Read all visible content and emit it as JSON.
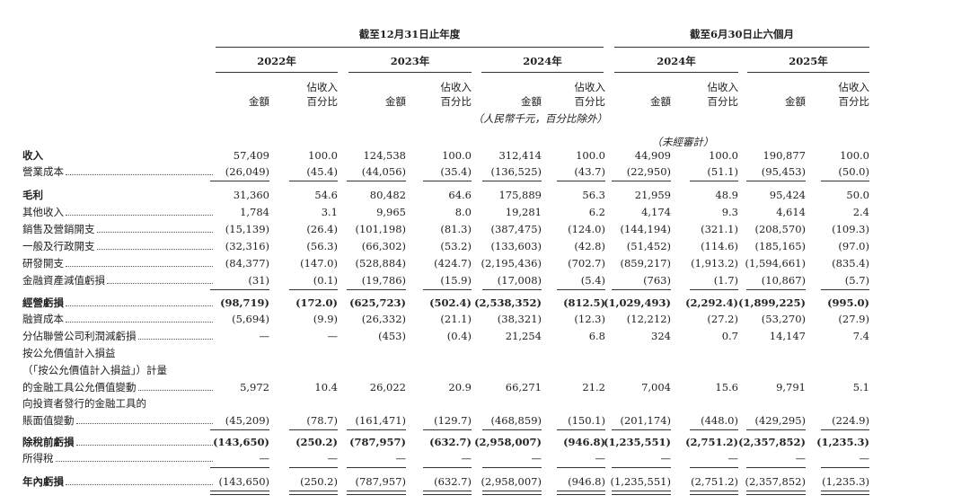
{
  "header": {
    "period_groups": [
      "截至12月31日止年度",
      "截至6月30日止六個月"
    ],
    "years": [
      "2022年",
      "2023年",
      "2024年",
      "2024年",
      "2025年"
    ],
    "amount": "金額",
    "pct_line1": "佔收入",
    "pct_line2": "百分比",
    "unit_note": "（人民幣千元，百分比除外）",
    "unaudited": "（未經審計）"
  },
  "table": {
    "rows": [
      {
        "label": [
          "收入"
        ],
        "values": [
          "57,409",
          "100.0",
          "124,538",
          "100.0",
          "312,414",
          "100.0",
          "44,909",
          "100.0",
          "190,877",
          "100.0"
        ]
      },
      {
        "label": [
          "營業成本"
        ],
        "values": [
          "(26,049)",
          "(45.4)",
          "(44,056)",
          "(35.4)",
          "(136,525)",
          "(43.7)",
          "(22,950)",
          "(51.1)",
          "(95,453)",
          "(50.0)"
        ]
      },
      {
        "label": [
          "毛利"
        ],
        "values": [
          "31,360",
          "54.6",
          "80,482",
          "64.6",
          "175,889",
          "56.3",
          "21,959",
          "48.9",
          "95,424",
          "50.0"
        ]
      },
      {
        "label": [
          "其他收入"
        ],
        "values": [
          "1,784",
          "3.1",
          "9,965",
          "8.0",
          "19,281",
          "6.2",
          "4,174",
          "9.3",
          "4,614",
          "2.4"
        ]
      },
      {
        "label": [
          "銷售及營銷開支"
        ],
        "values": [
          "(15,139)",
          "(26.4)",
          "(101,198)",
          "(81.3)",
          "(387,475)",
          "(124.0)",
          "(144,194)",
          "(321.1)",
          "(208,570)",
          "(109.3)"
        ]
      },
      {
        "label": [
          "一般及行政開支"
        ],
        "values": [
          "(32,316)",
          "(56.3)",
          "(66,302)",
          "(53.2)",
          "(133,603)",
          "(42.8)",
          "(51,452)",
          "(114.6)",
          "(185,165)",
          "(97.0)"
        ]
      },
      {
        "label": [
          "研發開支"
        ],
        "values": [
          "(84,377)",
          "(147.0)",
          "(528,884)",
          "(424.7)",
          "(2,195,436)",
          "(702.7)",
          "(859,217)",
          "(1,913.2)",
          "(1,594,661)",
          "(835.4)"
        ]
      },
      {
        "label": [
          "金融資產減值虧損"
        ],
        "values": [
          "(31)",
          "(0.1)",
          "(19,786)",
          "(15.9)",
          "(17,008)",
          "(5.4)",
          "(763)",
          "(1.7)",
          "(10,867)",
          "(5.7)"
        ]
      },
      {
        "label": [
          "經營虧損"
        ],
        "values": [
          "(98,719)",
          "(172.0)",
          "(625,723)",
          "(502.4)",
          "(2,538,352)",
          "(812.5)",
          "(1,029,493)",
          "(2,292.4)",
          "(1,899,225)",
          "(995.0)"
        ]
      },
      {
        "label": [
          "融資成本"
        ],
        "values": [
          "(5,694)",
          "(9.9)",
          "(26,332)",
          "(21.1)",
          "(38,321)",
          "(12.3)",
          "(12,212)",
          "(27.2)",
          "(53,270)",
          "(27.9)"
        ]
      },
      {
        "label": [
          "分佔聯營公司利潤減虧損"
        ],
        "values": [
          "—",
          "—",
          "(453)",
          "(0.4)",
          "21,254",
          "6.8",
          "324",
          "0.7",
          "14,147",
          "7.4"
        ]
      },
      {
        "label": [
          "按公允價值計入損益",
          "（「按公允價值計入損益」）計量",
          "的金融工具公允價值變動"
        ],
        "values": [
          "5,972",
          "10.4",
          "26,022",
          "20.9",
          "66,271",
          "21.2",
          "7,004",
          "15.6",
          "9,791",
          "5.1"
        ]
      },
      {
        "label": [
          "向投資者發行的金融工具的",
          "賬面值變動"
        ],
        "values": [
          "(45,209)",
          "(78.7)",
          "(161,471)",
          "(129.7)",
          "(468,859)",
          "(150.1)",
          "(201,174)",
          "(448.0)",
          "(429,295)",
          "(224.9)"
        ]
      },
      {
        "label": [
          "除稅前虧損"
        ],
        "values": [
          "(143,650)",
          "(250.2)",
          "(787,957)",
          "(632.7)",
          "(2,958,007)",
          "(946.8)",
          "(1,235,551)",
          "(2,751.2)",
          "(2,357,852)",
          "(1,235.3)"
        ]
      },
      {
        "label": [
          "所得稅"
        ],
        "values": [
          "—",
          "—",
          "—",
          "—",
          "—",
          "—",
          "—",
          "—",
          "—",
          "—"
        ]
      },
      {
        "label": [
          "年內虧損"
        ],
        "values": [
          "(143,650)",
          "(250.2)",
          "(787,957)",
          "(632.7)",
          "(2,958,007)",
          "(946.8)",
          "(1,235,551)",
          "(2,751.2)",
          "(2,357,852)",
          "(1,235.3)"
        ]
      }
    ]
  }
}
